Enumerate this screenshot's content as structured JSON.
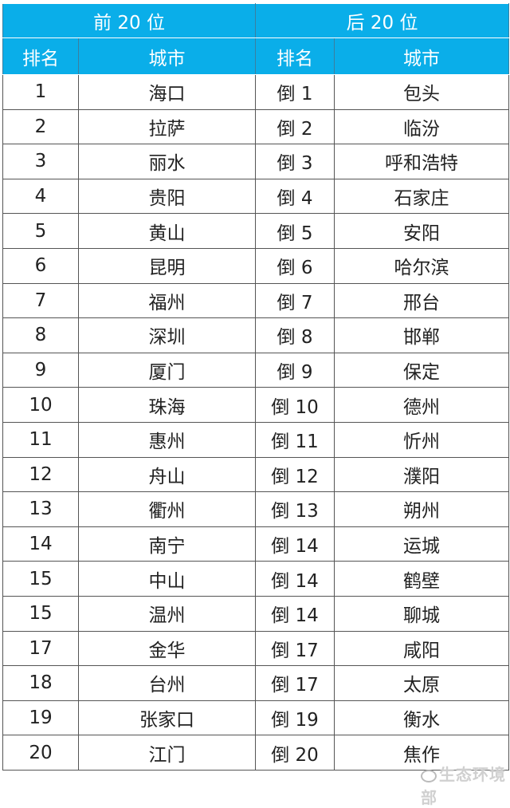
{
  "header": {
    "top_group": "前 20 位",
    "bottom_group": "后 20 位",
    "rank_label": "排名",
    "city_label": "城市"
  },
  "top20": [
    {
      "rank": "1",
      "city": "海口"
    },
    {
      "rank": "2",
      "city": "拉萨"
    },
    {
      "rank": "3",
      "city": "丽水"
    },
    {
      "rank": "4",
      "city": "贵阳"
    },
    {
      "rank": "5",
      "city": "黄山"
    },
    {
      "rank": "6",
      "city": "昆明"
    },
    {
      "rank": "7",
      "city": "福州"
    },
    {
      "rank": "8",
      "city": "深圳"
    },
    {
      "rank": "9",
      "city": "厦门"
    },
    {
      "rank": "10",
      "city": "珠海"
    },
    {
      "rank": "11",
      "city": "惠州"
    },
    {
      "rank": "12",
      "city": "舟山"
    },
    {
      "rank": "13",
      "city": "衢州"
    },
    {
      "rank": "14",
      "city": "南宁"
    },
    {
      "rank": "15",
      "city": "中山"
    },
    {
      "rank": "15",
      "city": "温州"
    },
    {
      "rank": "17",
      "city": "金华"
    },
    {
      "rank": "18",
      "city": "台州"
    },
    {
      "rank": "19",
      "city": "张家口"
    },
    {
      "rank": "20",
      "city": "江门"
    }
  ],
  "bottom20": [
    {
      "rank": "倒 1",
      "city": "包头"
    },
    {
      "rank": "倒 2",
      "city": "临汾"
    },
    {
      "rank": "倒 3",
      "city": "呼和浩特"
    },
    {
      "rank": "倒 4",
      "city": "石家庄"
    },
    {
      "rank": "倒 5",
      "city": "安阳"
    },
    {
      "rank": "倒 6",
      "city": "哈尔滨"
    },
    {
      "rank": "倒 7",
      "city": "邢台"
    },
    {
      "rank": "倒 8",
      "city": "邯郸"
    },
    {
      "rank": "倒 9",
      "city": "保定"
    },
    {
      "rank": "倒 10",
      "city": "德州"
    },
    {
      "rank": "倒 11",
      "city": "忻州"
    },
    {
      "rank": "倒 12",
      "city": "濮阳"
    },
    {
      "rank": "倒 13",
      "city": "朔州"
    },
    {
      "rank": "倒 14",
      "city": "运城"
    },
    {
      "rank": "倒 14",
      "city": "鹤壁"
    },
    {
      "rank": "倒 14",
      "city": "聊城"
    },
    {
      "rank": "倒 17",
      "city": "咸阳"
    },
    {
      "rank": "倒 17",
      "city": "太原"
    },
    {
      "rank": "倒 19",
      "city": "衡水"
    },
    {
      "rank": "倒 20",
      "city": "焦作"
    }
  ],
  "watermark": "生态环境部",
  "colors": {
    "header_bg": "#0aaee9",
    "header_text": "#ffffff"
  }
}
